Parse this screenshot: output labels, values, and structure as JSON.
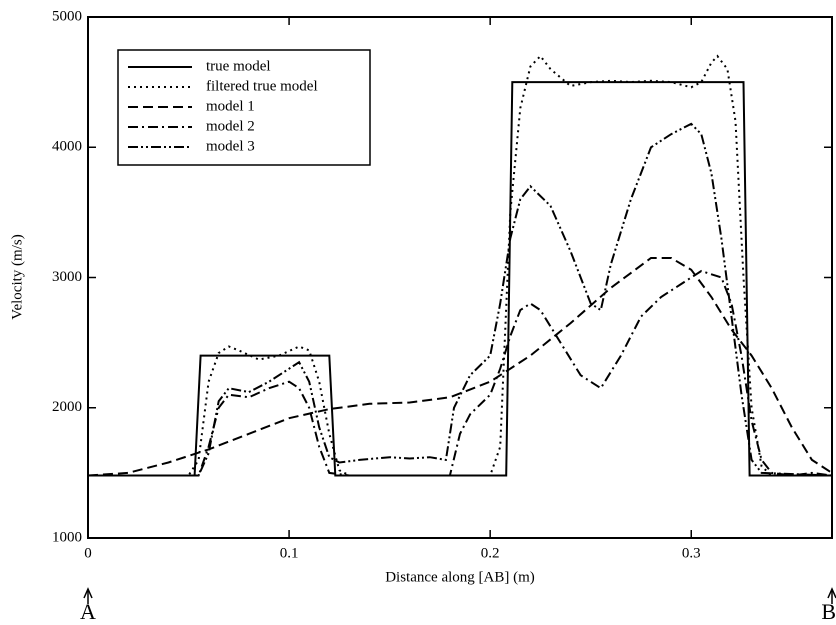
{
  "chart_data": {
    "type": "line",
    "xlabel": "Distance along [AB] (m)",
    "ylabel": "Velocity (m/s)",
    "xlim": [
      0,
      0.37
    ],
    "ylim": [
      1000,
      5000
    ],
    "xticks": [
      0,
      0.1,
      0.2,
      0.3
    ],
    "yticks": [
      1000,
      2000,
      3000,
      4000,
      5000
    ],
    "grid": false,
    "legend": "upper left",
    "annotations": [
      {
        "text": "A",
        "x": 0
      },
      {
        "text": "B",
        "x": 0.37
      }
    ],
    "series": [
      {
        "name": "true model",
        "color": "#000000",
        "dash": "solid",
        "x": [
          0,
          0.053,
          0.056,
          0.12,
          0.123,
          0.208,
          0.211,
          0.326,
          0.329,
          0.37
        ],
        "values": [
          1480,
          1480,
          2400,
          2400,
          1480,
          1480,
          4500,
          4500,
          1480,
          1480
        ]
      },
      {
        "name": "filtered true model",
        "color": "#000000",
        "dash": "dotted",
        "x": [
          0,
          0.05,
          0.055,
          0.06,
          0.065,
          0.07,
          0.075,
          0.085,
          0.095,
          0.105,
          0.11,
          0.115,
          0.12,
          0.125,
          0.13,
          0.2,
          0.205,
          0.21,
          0.215,
          0.22,
          0.225,
          0.23,
          0.24,
          0.25,
          0.26,
          0.27,
          0.28,
          0.29,
          0.3,
          0.305,
          0.31,
          0.313,
          0.318,
          0.322,
          0.326,
          0.33,
          0.335,
          0.34,
          0.37
        ],
        "values": [
          1480,
          1480,
          1600,
          2200,
          2420,
          2470,
          2440,
          2370,
          2400,
          2470,
          2440,
          2200,
          1800,
          1520,
          1480,
          1480,
          1700,
          3500,
          4300,
          4620,
          4700,
          4600,
          4470,
          4500,
          4510,
          4500,
          4510,
          4500,
          4460,
          4500,
          4650,
          4700,
          4600,
          4200,
          3000,
          2000,
          1550,
          1480,
          1480
        ]
      },
      {
        "name": "model 1",
        "color": "#000000",
        "dash": "dashed",
        "x": [
          0,
          0.02,
          0.04,
          0.06,
          0.08,
          0.1,
          0.12,
          0.14,
          0.16,
          0.18,
          0.2,
          0.22,
          0.24,
          0.26,
          0.28,
          0.29,
          0.3,
          0.31,
          0.32,
          0.33,
          0.34,
          0.35,
          0.36,
          0.37
        ],
        "values": [
          1480,
          1500,
          1580,
          1680,
          1800,
          1920,
          1990,
          2030,
          2040,
          2080,
          2200,
          2400,
          2650,
          2920,
          3150,
          3150,
          3060,
          2850,
          2600,
          2400,
          2150,
          1850,
          1600,
          1500
        ]
      },
      {
        "name": "model 2",
        "color": "#000000",
        "dash": "dashdot",
        "x": [
          0,
          0.055,
          0.06,
          0.065,
          0.07,
          0.08,
          0.09,
          0.1,
          0.105,
          0.11,
          0.115,
          0.12,
          0.13,
          0.18,
          0.185,
          0.19,
          0.2,
          0.205,
          0.21,
          0.215,
          0.22,
          0.225,
          0.235,
          0.245,
          0.255,
          0.265,
          0.275,
          0.285,
          0.295,
          0.305,
          0.315,
          0.32,
          0.325,
          0.33,
          0.335,
          0.34,
          0.35,
          0.36,
          0.37
        ],
        "values": [
          1480,
          1480,
          1700,
          2000,
          2100,
          2080,
          2150,
          2200,
          2150,
          2000,
          1700,
          1500,
          1480,
          1480,
          1800,
          1950,
          2100,
          2300,
          2550,
          2750,
          2800,
          2750,
          2500,
          2250,
          2150,
          2400,
          2700,
          2850,
          2950,
          3050,
          3000,
          2800,
          2400,
          1900,
          1600,
          1500,
          1480,
          1500,
          1480
        ]
      },
      {
        "name": "model 3",
        "color": "#000000",
        "dash": "dashdotdot",
        "x": [
          0,
          0.055,
          0.06,
          0.065,
          0.07,
          0.08,
          0.09,
          0.1,
          0.105,
          0.11,
          0.115,
          0.12,
          0.125,
          0.135,
          0.15,
          0.16,
          0.17,
          0.178,
          0.182,
          0.19,
          0.2,
          0.205,
          0.21,
          0.215,
          0.22,
          0.23,
          0.24,
          0.25,
          0.255,
          0.26,
          0.27,
          0.28,
          0.29,
          0.3,
          0.305,
          0.31,
          0.315,
          0.32,
          0.325,
          0.33,
          0.335,
          0.37
        ],
        "values": [
          1480,
          1480,
          1650,
          2050,
          2150,
          2120,
          2200,
          2300,
          2350,
          2200,
          1850,
          1620,
          1580,
          1600,
          1620,
          1610,
          1620,
          1600,
          2000,
          2250,
          2400,
          2800,
          3300,
          3600,
          3700,
          3550,
          3200,
          2800,
          2750,
          3100,
          3600,
          4000,
          4100,
          4180,
          4100,
          3800,
          3300,
          2700,
          2100,
          1600,
          1500,
          1480
        ]
      }
    ]
  }
}
